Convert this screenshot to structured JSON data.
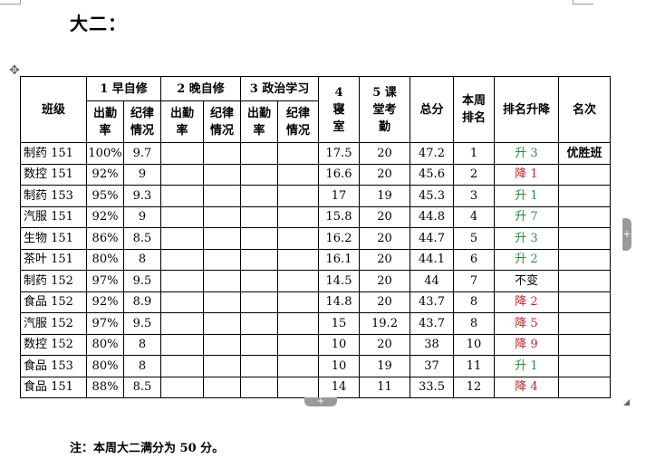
{
  "page": {
    "heading": "大二：",
    "note": "注：本周大二满分为 50 分。"
  },
  "table": {
    "header": {
      "class": "班级",
      "g1": "1 早自修",
      "g2": "2 晚自修",
      "g3": "3 政治学习",
      "attendance": "出勤率",
      "discipline": "纪律情况",
      "dorm": "4 寝室",
      "classroom": "5 课堂考勤",
      "total": "总分",
      "week_rank": "本周排名",
      "rank_change": "排名升降",
      "placing": "名次"
    },
    "rows": [
      {
        "name": "制药 151",
        "att1": "100%",
        "dis1": "9.7",
        "att2": "",
        "dis2": "",
        "att3": "",
        "dis3": "",
        "dorm": "17.5",
        "classroom": "20",
        "total": "47.2",
        "rank": "1",
        "change": "升 3",
        "change_type": "up",
        "placing": "优胜班"
      },
      {
        "name": "数控 151",
        "att1": "92%",
        "dis1": "9",
        "att2": "",
        "dis2": "",
        "att3": "",
        "dis3": "",
        "dorm": "16.6",
        "classroom": "20",
        "total": "45.6",
        "rank": "2",
        "change": "降 1",
        "change_type": "down",
        "placing": ""
      },
      {
        "name": "制药  153",
        "att1": "95%",
        "dis1": "9.3",
        "att2": "",
        "dis2": "",
        "att3": "",
        "dis3": "",
        "dorm": "17",
        "classroom": "19",
        "total": "45.3",
        "rank": "3",
        "change": "升 1",
        "change_type": "up",
        "placing": ""
      },
      {
        "name": "汽服 151",
        "att1": "92%",
        "dis1": "9",
        "att2": "",
        "dis2": "",
        "att3": "",
        "dis3": "",
        "dorm": "15.8",
        "classroom": "20",
        "total": "44.8",
        "rank": "4",
        "change": "升 7",
        "change_type": "up",
        "placing": ""
      },
      {
        "name": "生物 151",
        "att1": "86%",
        "dis1": "8.5",
        "att2": "",
        "dis2": "",
        "att3": "",
        "dis3": "",
        "dorm": "16.2",
        "classroom": "20",
        "total": "44.7",
        "rank": "5",
        "change": "升 3",
        "change_type": "up",
        "placing": ""
      },
      {
        "name": "茶叶 151",
        "att1": "80%",
        "dis1": "8",
        "att2": "",
        "dis2": "",
        "att3": "",
        "dis3": "",
        "dorm": "16.1",
        "classroom": "20",
        "total": "44.1",
        "rank": "6",
        "change": "升 2",
        "change_type": "up",
        "placing": ""
      },
      {
        "name": "制药 152",
        "att1": "97%",
        "dis1": "9.5",
        "att2": "",
        "dis2": "",
        "att3": "",
        "dis3": "",
        "dorm": "14.5",
        "classroom": "20",
        "total": "44",
        "rank": "7",
        "change": "不变",
        "change_type": "same",
        "placing": ""
      },
      {
        "name": "食品 152",
        "att1": "92%",
        "dis1": "8.9",
        "att2": "",
        "dis2": "",
        "att3": "",
        "dis3": "",
        "dorm": "14.8",
        "classroom": "20",
        "total": "43.7",
        "rank": "8",
        "change": "降 2",
        "change_type": "down",
        "placing": ""
      },
      {
        "name": "汽服 152",
        "att1": "97%",
        "dis1": "9.5",
        "att2": "",
        "dis2": "",
        "att3": "",
        "dis3": "",
        "dorm": "15",
        "classroom": "19.2",
        "total": "43.7",
        "rank": "8",
        "change": "降 5",
        "change_type": "down",
        "placing": ""
      },
      {
        "name": "数控 152",
        "att1": "80%",
        "dis1": "8",
        "att2": "",
        "dis2": "",
        "att3": "",
        "dis3": "",
        "dorm": "10",
        "classroom": "20",
        "total": "38",
        "rank": "10",
        "change": "降 9",
        "change_type": "down",
        "placing": ""
      },
      {
        "name": "食品 153",
        "att1": "80%",
        "dis1": "8",
        "att2": "",
        "dis2": "",
        "att3": "",
        "dis3": "",
        "dorm": "10",
        "classroom": "19",
        "total": "37",
        "rank": "11",
        "change": "升 1",
        "change_type": "up",
        "placing": ""
      },
      {
        "name": "食品 151",
        "att1": "88%",
        "dis1": "8.5",
        "att2": "",
        "dis2": "",
        "att3": "",
        "dis3": "",
        "dorm": "14",
        "classroom": "11",
        "total": "33.5",
        "rank": "12",
        "change": "降 4",
        "change_type": "down",
        "placing": ""
      }
    ]
  },
  "colors": {
    "up": "#2e8b3e",
    "down": "#c0262a",
    "same": "#000000"
  },
  "icons": {
    "move": "move-handle-icon",
    "add_column": "plus-icon",
    "add_row": "plus-icon",
    "resize": "resize-handle-icon"
  }
}
